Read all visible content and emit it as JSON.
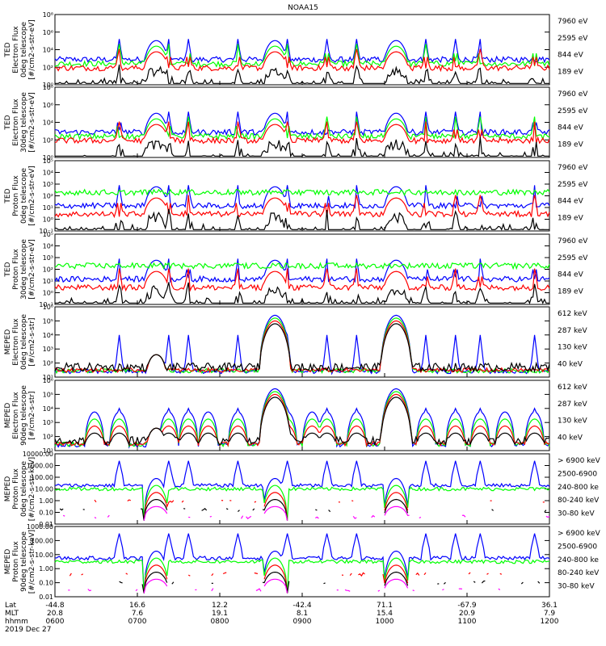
{
  "title": "NOAA15",
  "colors": {
    "black": "#000000",
    "blue": "#0000ff",
    "red": "#ff0000",
    "green": "#00ff00",
    "magenta": "#ff00ff"
  },
  "chart_data": [
    {
      "type": "line",
      "panel": 1,
      "ylabel": [
        "TED",
        "Electron Flux",
        "0deg telescope",
        "[#/cm2-s-str-eV]"
      ],
      "yticks": [
        "10⁰",
        "10²",
        "10⁴",
        "10⁶",
        "10⁸"
      ],
      "ylim_log10": [
        0,
        8
      ],
      "legend": [
        {
          "name": "7960 eV",
          "color": "black"
        },
        {
          "name": "2595 eV",
          "color": "red"
        },
        {
          "name": "844 eV",
          "color": "green"
        },
        {
          "name": "189 eV",
          "color": "blue"
        }
      ]
    },
    {
      "type": "line",
      "panel": 2,
      "ylabel": [
        "TED",
        "Electron Flux",
        "30deg telescope",
        "[#/cm2-s-str-eV]"
      ],
      "yticks": [
        "10⁰",
        "10²",
        "10⁴",
        "10⁶",
        "10⁸"
      ],
      "ylim_log10": [
        0,
        8
      ],
      "legend": [
        {
          "name": "7960 eV",
          "color": "black"
        },
        {
          "name": "2595 eV",
          "color": "red"
        },
        {
          "name": "844 eV",
          "color": "green"
        },
        {
          "name": "189 eV",
          "color": "blue"
        }
      ]
    },
    {
      "type": "line",
      "panel": 3,
      "ylabel": [
        "TED",
        "Proton Flux",
        "0deg telescope",
        "[#/cm2-s-str-eV]"
      ],
      "yticks": [
        "10⁻¹",
        "10⁰",
        "10¹",
        "10²",
        "10³",
        "10⁴",
        "10⁵"
      ],
      "ylim_log10": [
        -1,
        5
      ],
      "legend": [
        {
          "name": "7960 eV",
          "color": "black"
        },
        {
          "name": "2595 eV",
          "color": "red"
        },
        {
          "name": "844 eV",
          "color": "green"
        },
        {
          "name": "189 eV",
          "color": "blue"
        }
      ]
    },
    {
      "type": "line",
      "panel": 4,
      "ylabel": [
        "TED",
        "Proton Flux",
        "30deg telescope",
        "[#/cm2-s-str-eV]"
      ],
      "yticks": [
        "10⁻¹",
        "10⁰",
        "10¹",
        "10²",
        "10³",
        "10⁴",
        "10⁵"
      ],
      "ylim_log10": [
        -1,
        5
      ],
      "legend": [
        {
          "name": "7960 eV",
          "color": "black"
        },
        {
          "name": "2595 eV",
          "color": "red"
        },
        {
          "name": "844 eV",
          "color": "green"
        },
        {
          "name": "189 eV",
          "color": "blue"
        }
      ]
    },
    {
      "type": "line",
      "panel": 5,
      "ylabel": [
        "MEPED",
        "Electron Flux",
        "0deg telescope",
        "[#/cm2-s-str]"
      ],
      "yticks": [
        "10¹",
        "10²",
        "10³",
        "10⁴",
        "10⁵",
        "10⁶"
      ],
      "ylim_log10": [
        1,
        6
      ],
      "legend": [
        {
          "name": "612 keV",
          "color": "black"
        },
        {
          "name": "287 keV",
          "color": "red"
        },
        {
          "name": "130 keV",
          "color": "green"
        },
        {
          "name": "40 keV",
          "color": "blue"
        }
      ]
    },
    {
      "type": "line",
      "panel": 6,
      "ylabel": [
        "MEPED",
        "Electron Flux",
        "90deg telescope",
        "[#/cm2-s-str]"
      ],
      "yticks": [
        "10¹",
        "10²",
        "10³",
        "10⁴",
        "10⁵",
        "10⁶"
      ],
      "ylim_log10": [
        1,
        6
      ],
      "legend": [
        {
          "name": "612 keV",
          "color": "black"
        },
        {
          "name": "287 keV",
          "color": "red"
        },
        {
          "name": "130 keV",
          "color": "green"
        },
        {
          "name": "40 keV",
          "color": "blue"
        }
      ]
    },
    {
      "type": "line",
      "panel": 7,
      "ylabel": [
        "MEPED",
        "Proton Flux",
        "0deg telescope",
        "[#/cm2-s-str-keV]"
      ],
      "yticks": [
        "0.01",
        "0.10",
        "1.00",
        "10.00",
        "100.00",
        "1000.00",
        "10000.00"
      ],
      "ylim_log10": [
        -2,
        4
      ],
      "legend": [
        {
          "name": "> 6900 keV",
          "color": "magenta"
        },
        {
          "name": "2500-6900",
          "color": "black"
        },
        {
          "name": "240-800 ke",
          "color": "red"
        },
        {
          "name": "80-240 keV",
          "color": "green"
        },
        {
          "name": "30-80 keV",
          "color": "blue"
        }
      ]
    },
    {
      "type": "line",
      "panel": 8,
      "ylabel": [
        "MEPED",
        "Proton Flux",
        "90deg telescope",
        "[#/cm2-s-str-keV]"
      ],
      "yticks": [
        "0.01",
        "0.10",
        "1.00",
        "10.00",
        "100.00",
        "1000.00"
      ],
      "ylim_log10": [
        -2,
        3
      ],
      "legend": [
        {
          "name": "> 6900 keV",
          "color": "magenta"
        },
        {
          "name": "2500-6900",
          "color": "black"
        },
        {
          "name": "240-800 ke",
          "color": "red"
        },
        {
          "name": "80-240 keV",
          "color": "green"
        },
        {
          "name": "30-80 keV",
          "color": "blue"
        }
      ]
    }
  ],
  "xaxis": {
    "row_labels": [
      "Lat",
      "MLT",
      "hhmm",
      "2019 Dec 27"
    ],
    "lat": [
      "-44.8",
      "16.6",
      "12.2",
      "-42.4",
      "71.1",
      "-67.9",
      "36.1"
    ],
    "mlt": [
      "20.8",
      "7.6",
      "19.1",
      "8.1",
      "15.4",
      "20.9",
      "7.9"
    ],
    "hhmm": [
      "0600",
      "0700",
      "0800",
      "0900",
      "1000",
      "1100",
      "1200"
    ]
  },
  "passes": [
    0.205,
    0.445,
    0.69
  ]
}
